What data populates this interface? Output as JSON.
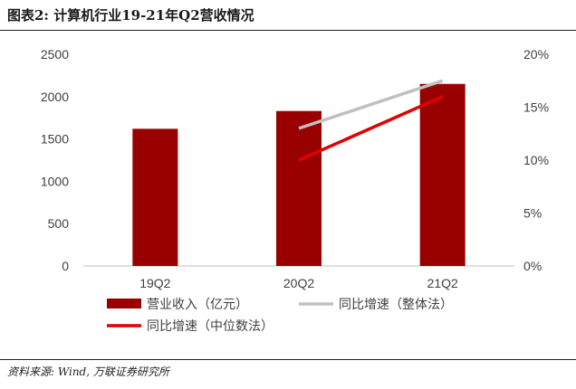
{
  "header": {
    "title": "图表2: 计算机行业19-21年Q2营收情况"
  },
  "footer": {
    "source": "资料来源: Wind, 万联证券研究所"
  },
  "chart_data": {
    "type": "bar",
    "categories": [
      "19Q2",
      "20Q2",
      "21Q2"
    ],
    "y_left": {
      "range": [
        0,
        2500
      ],
      "ticks": [
        "0",
        "500",
        "1000",
        "1500",
        "2000",
        "2500"
      ]
    },
    "y_right": {
      "range": [
        0,
        20
      ],
      "ticks": [
        "0%",
        "5%",
        "10%",
        "15%",
        "20%"
      ]
    },
    "series": [
      {
        "name": "营业收入（亿元）",
        "type": "bar",
        "axis": "left",
        "color": "#990000",
        "values": [
          1620,
          1830,
          2150
        ]
      },
      {
        "name": "同比增速（整体法）",
        "type": "line",
        "axis": "right",
        "color": "#c0c0c0",
        "x": [
          "20Q2",
          "21Q2"
        ],
        "values": [
          13,
          17.5
        ]
      },
      {
        "name": "同比增速（中位数法）",
        "type": "line",
        "axis": "right",
        "color": "#e00000",
        "x": [
          "20Q2",
          "21Q2"
        ],
        "values": [
          10,
          16
        ]
      }
    ],
    "legend_position": "bottom-left",
    "grid": false
  }
}
